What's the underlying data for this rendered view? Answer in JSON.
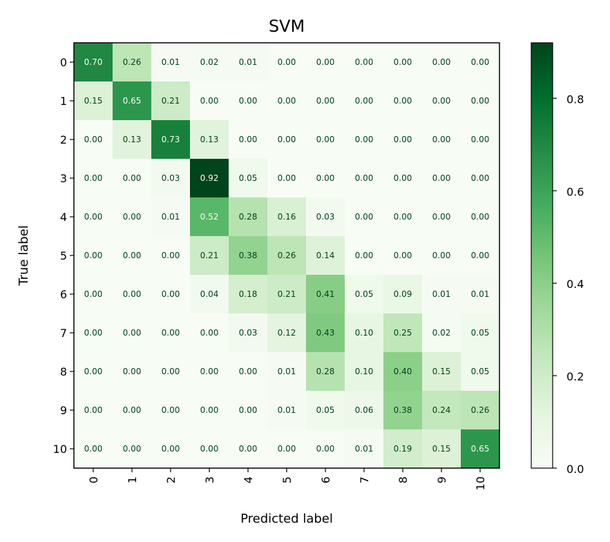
{
  "chart_data": {
    "type": "heatmap",
    "title": "SVM",
    "xlabel": "Predicted label",
    "ylabel": "True label",
    "x_categories": [
      "0",
      "1",
      "2",
      "3",
      "4",
      "5",
      "6",
      "7",
      "8",
      "9",
      "10"
    ],
    "y_categories": [
      "0",
      "1",
      "2",
      "3",
      "4",
      "5",
      "6",
      "7",
      "8",
      "9",
      "10"
    ],
    "values": [
      [
        0.7,
        0.26,
        0.01,
        0.02,
        0.01,
        0.0,
        0.0,
        0.0,
        0.0,
        0.0,
        0.0
      ],
      [
        0.15,
        0.65,
        0.21,
        0.0,
        0.0,
        0.0,
        0.0,
        0.0,
        0.0,
        0.0,
        0.0
      ],
      [
        0.0,
        0.13,
        0.73,
        0.13,
        0.0,
        0.0,
        0.0,
        0.0,
        0.0,
        0.0,
        0.0
      ],
      [
        0.0,
        0.0,
        0.03,
        0.92,
        0.05,
        0.0,
        0.0,
        0.0,
        0.0,
        0.0,
        0.0
      ],
      [
        0.0,
        0.0,
        0.01,
        0.52,
        0.28,
        0.16,
        0.03,
        0.0,
        0.0,
        0.0,
        0.0
      ],
      [
        0.0,
        0.0,
        0.0,
        0.21,
        0.38,
        0.26,
        0.14,
        0.0,
        0.0,
        0.0,
        0.0
      ],
      [
        0.0,
        0.0,
        0.0,
        0.04,
        0.18,
        0.21,
        0.41,
        0.05,
        0.09,
        0.01,
        0.01
      ],
      [
        0.0,
        0.0,
        0.0,
        0.0,
        0.03,
        0.12,
        0.43,
        0.1,
        0.25,
        0.02,
        0.05
      ],
      [
        0.0,
        0.0,
        0.0,
        0.0,
        0.0,
        0.01,
        0.28,
        0.1,
        0.4,
        0.15,
        0.05
      ],
      [
        0.0,
        0.0,
        0.0,
        0.0,
        0.0,
        0.01,
        0.05,
        0.06,
        0.38,
        0.24,
        0.26
      ],
      [
        0.0,
        0.0,
        0.0,
        0.0,
        0.0,
        0.0,
        0.0,
        0.01,
        0.19,
        0.15,
        0.65
      ]
    ],
    "colormap": "Greens",
    "colorbar": {
      "vmin": 0.0,
      "vmax": 0.92,
      "ticks": [
        "0.0",
        "0.2",
        "0.4",
        "0.6",
        "0.8"
      ]
    },
    "colors": {
      "low": "#f7fcf5",
      "high": "#00441b",
      "dark_text": "#00441b",
      "light_text": "#f7fcf5"
    }
  }
}
